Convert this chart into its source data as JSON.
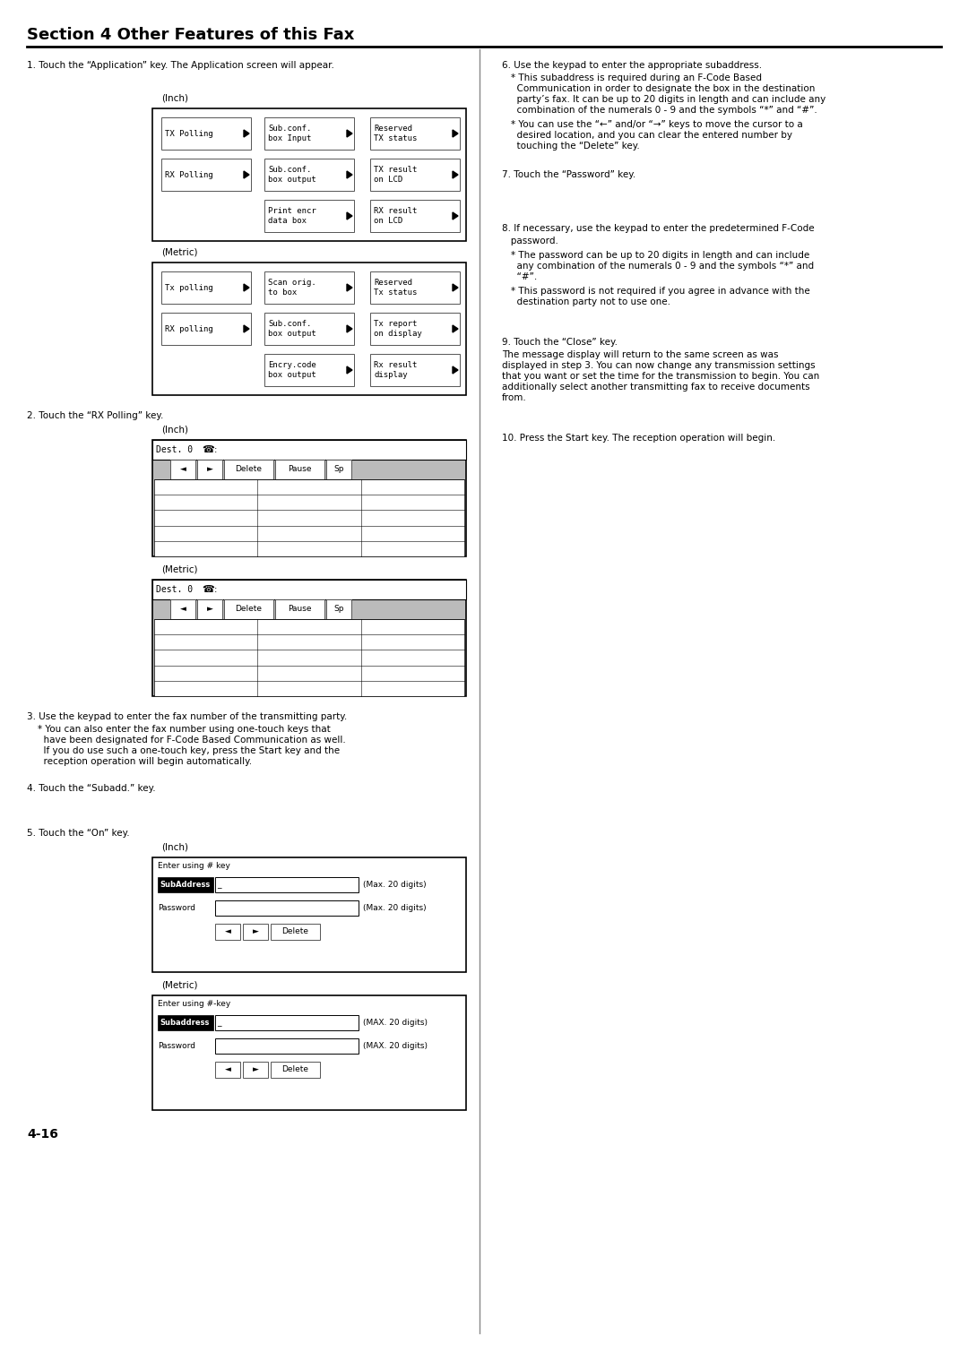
{
  "title": "Section 4 Other Features of this Fax",
  "bg_color": "#ffffff",
  "body_font_size": 7.5,
  "small_font_size": 6.5,
  "title_font_size": 13,
  "page_num": "4-16",
  "step1": "1. Touch the “Application” key. The Application screen will appear.",
  "step2": "2. Touch the “RX Polling” key.",
  "step3": "3. Use the keypad to enter the fax number of the transmitting party.",
  "step3a": "* You can also enter the fax number using one-touch keys that",
  "step3b": "  have been designated for F-Code Based Communication as well.",
  "step3c": "  If you do use such a one-touch key, press the Start key and the",
  "step3d": "  reception operation will begin automatically.",
  "step4": "4. Touch the “Subadd.” key.",
  "step5": "5. Touch the “On” key.",
  "step6": "6. Use the keypad to enter the appropriate subaddress.",
  "step6a": "* This subaddress is required during an F-Code Based",
  "step6b": "  Communication in order to designate the box in the destination",
  "step6c": "  party’s fax. It can be up to 20 digits in length and can include any",
  "step6d": "  combination of the numerals 0 - 9 and the symbols “*” and “#”.",
  "step6e": "* You can use the “←” and/or “→” keys to move the cursor to a",
  "step6f": "  desired location, and you can clear the entered number by",
  "step6g": "  touching the “Delete” key.",
  "step7": "7. Touch the “Password” key.",
  "step8": "8. If necessary, use the keypad to enter the predetermined F-Code",
  "step8a": "   password.",
  "step8b": "* The password can be up to 20 digits in length and can include",
  "step8c": "  any combination of the numerals 0 - 9 and the symbols “*” and",
  "step8d": "  “#”.",
  "step8e": "* This password is not required if you agree in advance with the",
  "step8f": "  destination party not to use one.",
  "step9": "9. Touch the “Close” key.",
  "step9a": "The message display will return to the same screen as was",
  "step9b": "displayed in step 3. You can now change any transmission settings",
  "step9c": "that you want or set the time for the transmission to begin. You can",
  "step9d": "additionally select another transmitting fax to receive documents",
  "step9e": "from.",
  "step10": "10. Press the Start key. The reception operation will begin.",
  "inch_label": "(Inch)",
  "metric_label": "(Metric)",
  "inch_row1": [
    "TX Polling",
    "Sub.conf.\nbox Input",
    "Reserved\nTX status"
  ],
  "inch_row2": [
    "RX Polling",
    "Sub.conf.\nbox output",
    "TX result\non LCD"
  ],
  "inch_row3": [
    "",
    "Print encr\ndata box",
    "RX result\non LCD"
  ],
  "metric_row1": [
    "Tx polling",
    "Scan orig.\nto box",
    "Reserved\nTx status"
  ],
  "metric_row2": [
    "RX polling",
    "Sub.conf.\nbox output",
    "Tx report\non display"
  ],
  "metric_row3": [
    "",
    "Encry.code\nbox output",
    "Rx result\ndisplay"
  ]
}
